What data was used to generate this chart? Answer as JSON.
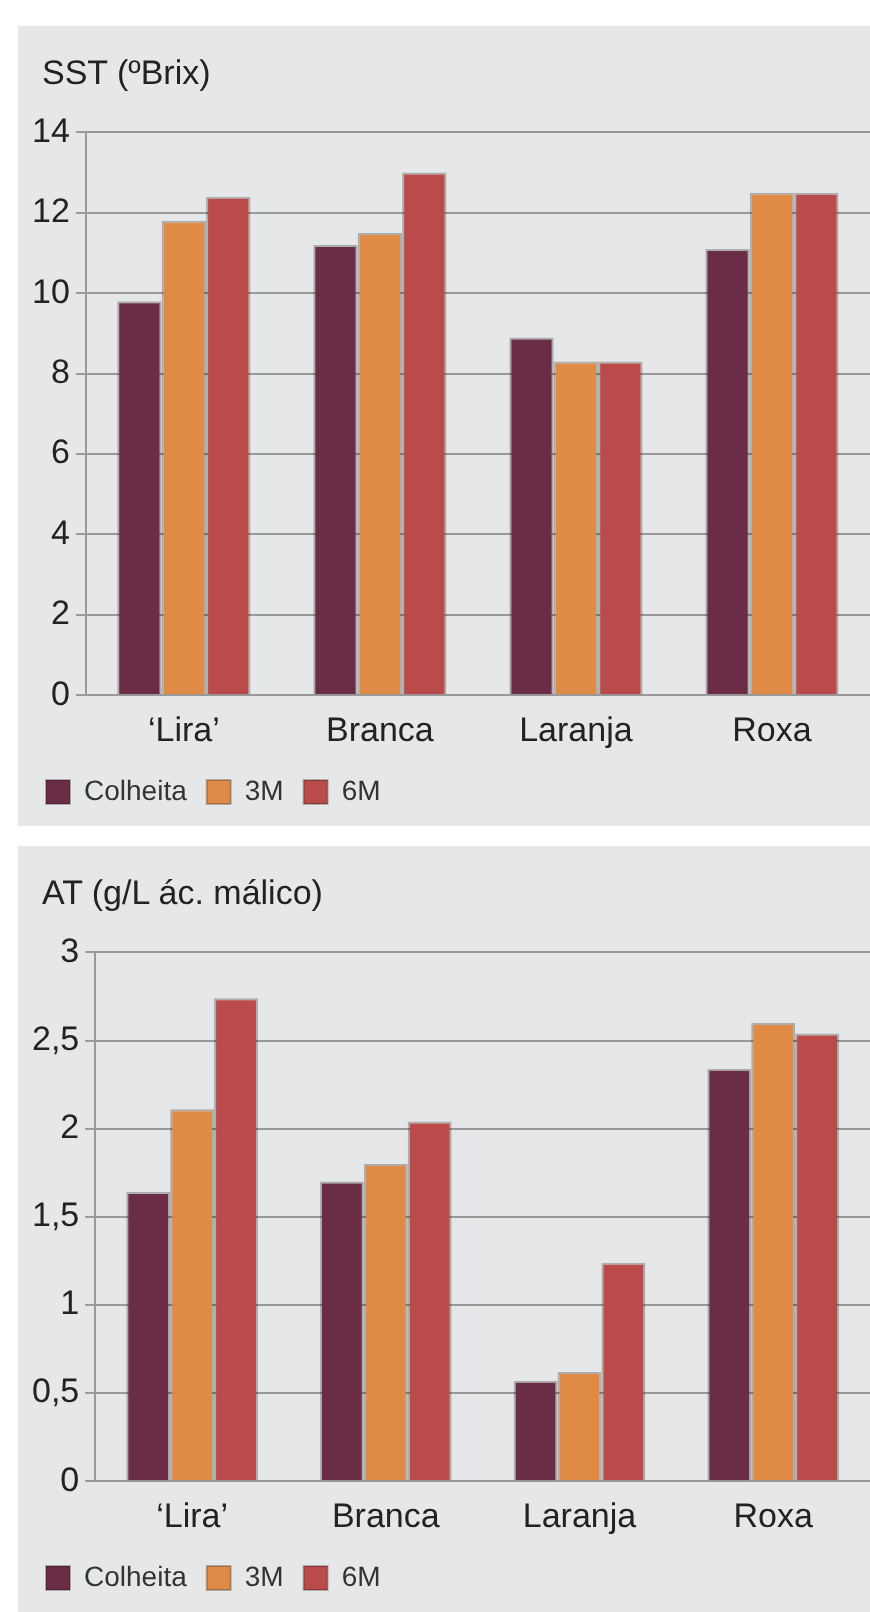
{
  "chart_data": [
    {
      "type": "bar",
      "title": "SST (ºBrix)",
      "categories": [
        "‘Lira’",
        "Branca",
        "Laranja",
        "Roxa"
      ],
      "series": [
        {
          "name": "Colheita",
          "color": "#6b2d45",
          "values": [
            9.8,
            11.2,
            8.9,
            11.1
          ]
        },
        {
          "name": "3M",
          "color": "#e08b45",
          "values": [
            11.8,
            11.5,
            8.3,
            12.5
          ]
        },
        {
          "name": "6M",
          "color": "#bb4a4a",
          "values": [
            12.4,
            13.0,
            8.3,
            12.5
          ]
        }
      ],
      "ylim": [
        0,
        14
      ],
      "yticks": [
        0,
        2,
        4,
        6,
        8,
        10,
        12,
        14
      ],
      "grid": "y",
      "legend": "bottom left"
    },
    {
      "type": "bar",
      "title": "AT (g/L ác. málico)",
      "categories": [
        "‘Lira’",
        "Branca",
        "Laranja",
        "Roxa"
      ],
      "series": [
        {
          "name": "Colheita",
          "color": "#6b2d45",
          "values": [
            1.64,
            1.7,
            0.57,
            2.34
          ]
        },
        {
          "name": "3M",
          "color": "#e08b45",
          "values": [
            2.11,
            1.8,
            0.62,
            2.6
          ]
        },
        {
          "name": "6M",
          "color": "#bb4a4a",
          "values": [
            2.74,
            2.04,
            1.24,
            2.54
          ]
        }
      ],
      "ylim": [
        0,
        3
      ],
      "yticks": [
        0,
        {
          "value": 0.5,
          "label": "0,5"
        },
        1,
        {
          "value": 1.5,
          "label": "1,5"
        },
        2,
        {
          "value": 2.5,
          "label": "2,5"
        },
        3
      ],
      "grid": "y",
      "legend": "bottom left"
    }
  ]
}
